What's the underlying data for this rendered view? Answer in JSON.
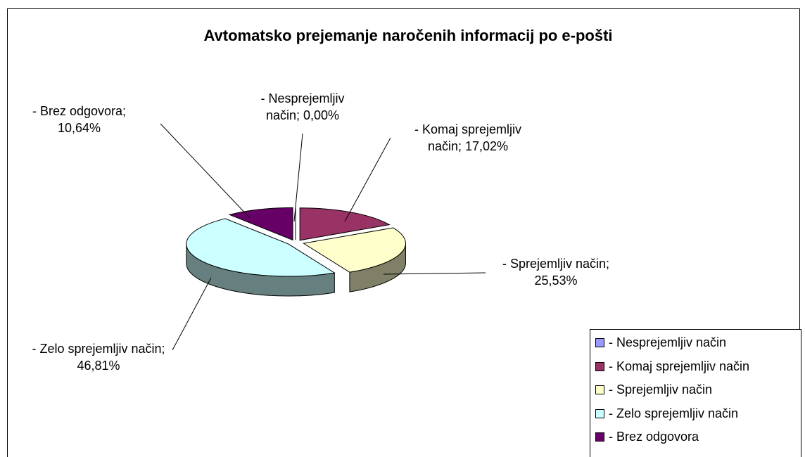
{
  "chart_data": {
    "type": "pie3d",
    "title": "Avtomatsko prejemanje naročenih informacij po e-pošti",
    "categories": [
      "- Nesprejemljiv način",
      "- Komaj sprejemljiv način",
      "- Sprejemljiv način",
      "- Zelo sprejemljiv način",
      "- Brez odgovora"
    ],
    "values": [
      0,
      17.02,
      25.53,
      46.81,
      10.64
    ],
    "value_labels": [
      "- Nesprejemljiv način; 0,00%",
      "- Komaj sprejemljiv način; 17,02%",
      "- Sprejemljiv način; 25,53%",
      "- Zelo sprejemljiv način; 46,81%",
      "- Brez odgovora; 10,64%"
    ],
    "colors": [
      "#9999ff",
      "#993366",
      "#ffffcc",
      "#ccffff",
      "#660066"
    ],
    "legend": "bottom-right"
  }
}
